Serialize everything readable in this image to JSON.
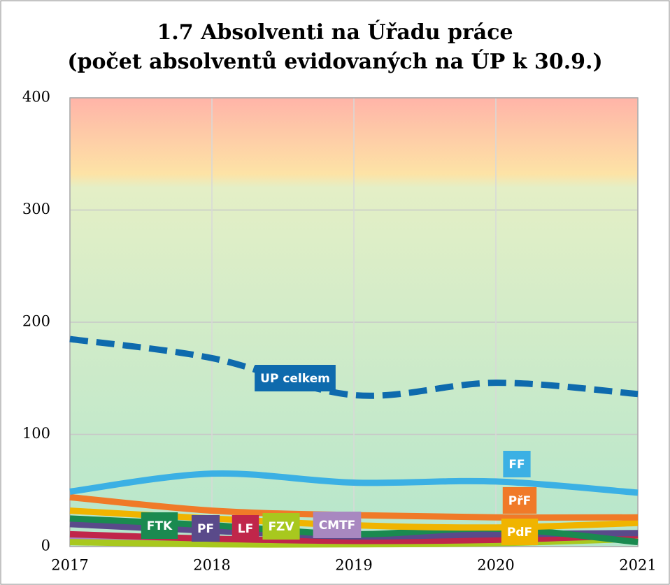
{
  "chart_data": {
    "type": "line",
    "title": "1.7 Absolventi na Úřadu práce",
    "subtitle": "(počet absolventů evidovaných na ÚP k 30.9.)",
    "categories": [
      "2017",
      "2018",
      "2019",
      "2020",
      "2021"
    ],
    "ylim": [
      0,
      400
    ],
    "yticks": [
      0,
      100,
      200,
      300,
      400
    ],
    "grid": true,
    "series": [
      {
        "name": "UP celkem",
        "color": "#0e6aad",
        "dashed": true,
        "values": [
          185,
          168,
          135,
          146,
          136
        ]
      },
      {
        "name": "FF",
        "color": "#3bb0e4",
        "values": [
          49,
          65,
          57,
          58,
          48
        ]
      },
      {
        "name": "PřF",
        "color": "#f07a28",
        "values": [
          44,
          32,
          28,
          26,
          26
        ]
      },
      {
        "name": "PdF",
        "color": "#f0b400",
        "values": [
          32,
          25,
          19,
          17,
          21
        ]
      },
      {
        "name": "FTK",
        "color": "#1a8a50",
        "values": [
          25,
          19,
          11,
          16,
          4
        ]
      },
      {
        "name": "PF",
        "color": "#5a4a8a",
        "values": [
          20,
          14,
          9,
          11,
          12
        ]
      },
      {
        "name": "LF",
        "color": "#c0264a",
        "values": [
          11,
          7,
          5,
          6,
          10
        ]
      },
      {
        "name": "FZV",
        "color": "#a8c81e",
        "values": [
          4,
          2,
          2,
          3,
          7
        ]
      },
      {
        "name": "CMTF",
        "color": "#a888c0",
        "values": [
          9,
          4,
          6,
          7,
          9
        ]
      }
    ]
  }
}
